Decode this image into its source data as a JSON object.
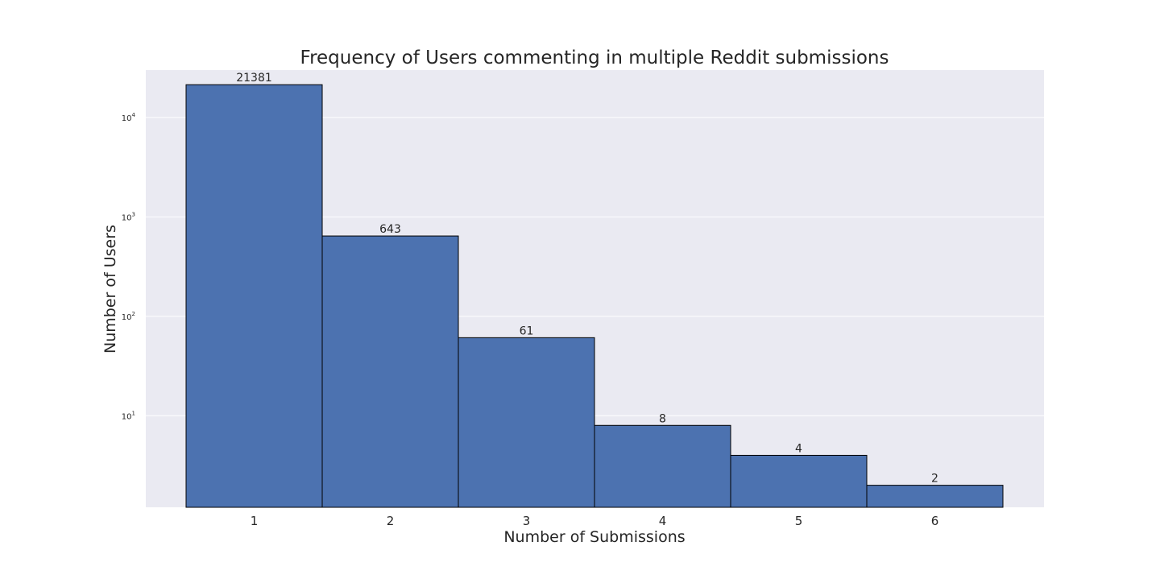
{
  "chart_data": {
    "type": "bar",
    "title": "Frequency of Users commenting in multiple Reddit submissions",
    "xlabel": "Number of Submissions",
    "ylabel": "Number of Users",
    "categories": [
      "1",
      "2",
      "3",
      "4",
      "5",
      "6"
    ],
    "values": [
      21381,
      643,
      61,
      8,
      4,
      2
    ],
    "data_labels": [
      "21381",
      "643",
      "61",
      "8",
      "4",
      "2"
    ],
    "y_scale": "log",
    "ylim": [
      1.2,
      30000
    ],
    "yticks": [
      {
        "value": 10,
        "base": "10",
        "exp": "1"
      },
      {
        "value": 100,
        "base": "10",
        "exp": "2"
      },
      {
        "value": 1000,
        "base": "10",
        "exp": "3"
      },
      {
        "value": 10000,
        "base": "10",
        "exp": "4"
      }
    ],
    "grid": true,
    "legend": false,
    "colors": {
      "bar_fill": "#4c72b0",
      "bar_edge": "#000000",
      "plot_background": "#eaeaf2",
      "grid": "#ffffff",
      "text": "#262626"
    }
  }
}
